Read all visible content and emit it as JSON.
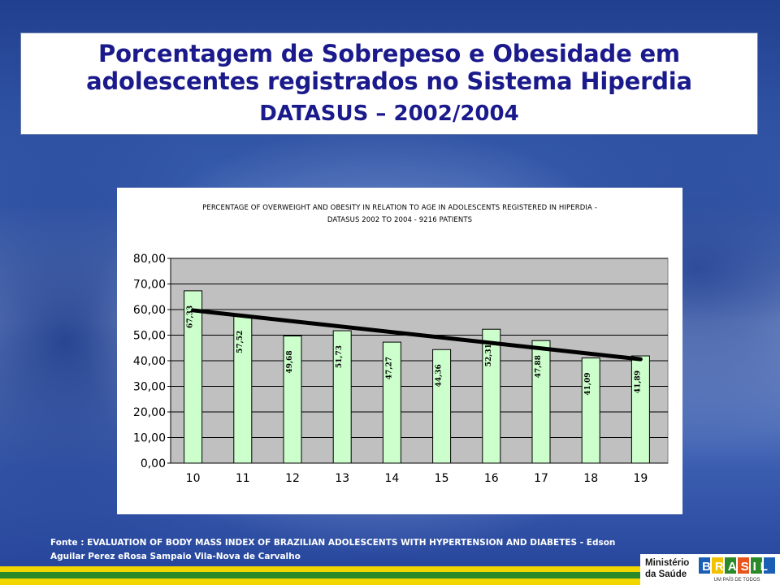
{
  "header": {
    "title_line1": "Porcentagem de Sobrepeso e Obesidade em",
    "title_line2": "adolescentes registrados no Sistema Hiperdia",
    "title_line3": "DATASUS – 2002/2004"
  },
  "chart_data": {
    "type": "bar",
    "title_line1": "PERCENTAGE OF OVERWEIGHT AND OBESITY IN RELATION TO AGE IN ADOLESCENTS REGISTERED IN HIPERDIA -",
    "title_line2": "DATASUS     2002 TO 2004  - 9216 PATIENTS",
    "categories": [
      "10",
      "11",
      "12",
      "13",
      "14",
      "15",
      "16",
      "17",
      "18",
      "19"
    ],
    "values": [
      67.33,
      57.52,
      49.68,
      51.73,
      47.27,
      44.36,
      52.31,
      47.88,
      41.09,
      41.89
    ],
    "value_labels": [
      "67,33",
      "57,52",
      "49,68",
      "51,73",
      "47,27",
      "44,36",
      "52,31",
      "47,88",
      "41,09",
      "41,89"
    ],
    "y_ticks": [
      "0,00",
      "10,00",
      "20,00",
      "30,00",
      "40,00",
      "50,00",
      "60,00",
      "70,00",
      "80,00"
    ],
    "ylim": [
      0,
      80
    ],
    "trendline": {
      "type": "linear",
      "start": 59.7,
      "end": 40.6
    },
    "grid": true,
    "colors": {
      "bar_fill": "#ccffcc",
      "bar_stroke": "#000000",
      "plot_bg": "#c0c0c0",
      "trendline": "#000000"
    }
  },
  "footer": {
    "source_line1": "Fonte : EVALUATION OF BODY MASS INDEX OF BRAZILIAN ADOLESCENTS WITH HYPERTENSION AND DIABETES -  Edson",
    "source_line2": "Aguilar Perez eRosa Sampaio Vila-Nova de Carvalho",
    "logo_ministerio_line1": "Ministério",
    "logo_ministerio_line2": "da Saúde",
    "logo_brasil": "BRASIL",
    "logo_tagline": "UM PAÍS DE TODOS"
  },
  "colors": {
    "title_text": "#1a1a8c",
    "stripe_yellow": "#f2d600",
    "stripe_green": "#2a8a2a",
    "stripe_blue": "#1a2f8c"
  }
}
